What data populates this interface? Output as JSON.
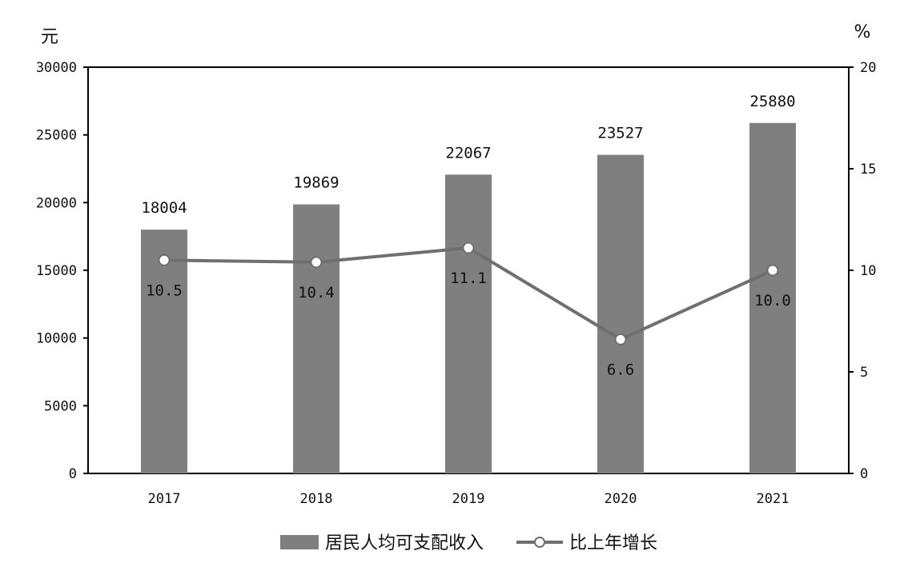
{
  "chart_data": {
    "type": "bar",
    "categories": [
      "2017",
      "2018",
      "2019",
      "2020",
      "2021"
    ],
    "left_axis": {
      "unit": "元",
      "ylim": [
        0,
        30000
      ],
      "ticks": [
        "0",
        "5000",
        "10000",
        "15000",
        "20000",
        "25000",
        "30000"
      ]
    },
    "right_axis": {
      "unit": "%",
      "ylim": [
        0,
        20
      ],
      "ticks": [
        "0",
        "5",
        "10",
        "15",
        "20"
      ]
    },
    "series": [
      {
        "name": "居民人均可支配收入",
        "type": "bar",
        "axis": "left",
        "values": [
          18004,
          19869,
          22067,
          23527,
          25880
        ],
        "labels": [
          "18004",
          "19869",
          "22067",
          "23527",
          "25880"
        ]
      },
      {
        "name": "比上年增长",
        "type": "line",
        "axis": "right",
        "values": [
          10.5,
          10.4,
          11.1,
          6.6,
          10.0
        ],
        "labels": [
          "10.5",
          "10.4",
          "11.1",
          "6.6",
          "10.0"
        ]
      }
    ],
    "colors": {
      "bar": "#7f7f7f",
      "line": "#6f6f6f",
      "marker_fill": "#ffffff",
      "axis": "#000000"
    },
    "grid": false,
    "legend": "bottom-center"
  }
}
